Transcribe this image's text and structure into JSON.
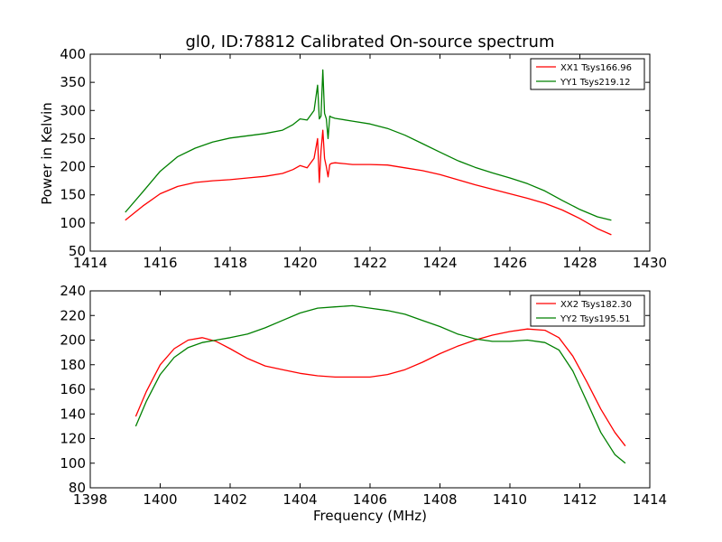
{
  "chart_data": [
    {
      "type": "line",
      "title": "gl0, ID:78812 Calibrated On-source spectrum",
      "xlabel": "",
      "ylabel": "Power in Kelvin",
      "xlim": [
        1414,
        1430
      ],
      "ylim": [
        50,
        400
      ],
      "xticks": [
        "1414",
        "1416",
        "1418",
        "1420",
        "1422",
        "1424",
        "1426",
        "1428",
        "1430"
      ],
      "yticks": [
        "50",
        "100",
        "150",
        "200",
        "250",
        "300",
        "350",
        "400"
      ],
      "grid": false,
      "legend_position": "top-right",
      "series": [
        {
          "name": "XX1 Tsys166.96",
          "color": "#ff0000",
          "x": [
            1415.0,
            1415.5,
            1416.0,
            1416.5,
            1417.0,
            1417.5,
            1418.0,
            1418.5,
            1419.0,
            1419.5,
            1419.8,
            1420.0,
            1420.2,
            1420.4,
            1420.5,
            1420.55,
            1420.6,
            1420.65,
            1420.7,
            1420.75,
            1420.8,
            1420.85,
            1420.9,
            1421.0,
            1421.5,
            1422.0,
            1422.5,
            1423.0,
            1423.5,
            1424.0,
            1424.5,
            1425.0,
            1425.5,
            1426.0,
            1426.5,
            1427.0,
            1427.5,
            1428.0,
            1428.5,
            1428.9
          ],
          "values": [
            105,
            130,
            152,
            165,
            172,
            175,
            177,
            180,
            183,
            188,
            195,
            202,
            198,
            215,
            250,
            172,
            228,
            265,
            215,
            200,
            182,
            204,
            206,
            207,
            204,
            204,
            203,
            198,
            193,
            186,
            177,
            168,
            160,
            152,
            144,
            135,
            123,
            108,
            90,
            79
          ]
        },
        {
          "name": "YY1 Tsys219.12",
          "color": "#008000",
          "x": [
            1415.0,
            1415.5,
            1416.0,
            1416.5,
            1417.0,
            1417.5,
            1418.0,
            1418.5,
            1419.0,
            1419.5,
            1419.8,
            1420.0,
            1420.2,
            1420.4,
            1420.5,
            1420.55,
            1420.6,
            1420.65,
            1420.7,
            1420.75,
            1420.8,
            1420.85,
            1420.9,
            1421.0,
            1421.5,
            1422.0,
            1422.5,
            1423.0,
            1423.5,
            1424.0,
            1424.5,
            1425.0,
            1425.5,
            1426.0,
            1426.5,
            1427.0,
            1427.5,
            1428.0,
            1428.5,
            1428.9
          ],
          "values": [
            119,
            155,
            192,
            218,
            233,
            244,
            251,
            255,
            259,
            265,
            275,
            285,
            283,
            300,
            345,
            285,
            290,
            372,
            295,
            285,
            250,
            290,
            288,
            286,
            281,
            276,
            268,
            256,
            241,
            226,
            211,
            199,
            189,
            180,
            170,
            157,
            140,
            124,
            111,
            105
          ]
        }
      ]
    },
    {
      "type": "line",
      "title": "",
      "xlabel": "Frequency (MHz)",
      "ylabel": "",
      "xlim": [
        1398,
        1414
      ],
      "ylim": [
        80,
        240
      ],
      "xticks": [
        "1398",
        "1400",
        "1402",
        "1404",
        "1406",
        "1408",
        "1410",
        "1412",
        "1414"
      ],
      "yticks": [
        "80",
        "100",
        "120",
        "140",
        "160",
        "180",
        "200",
        "220",
        "240"
      ],
      "grid": false,
      "legend_position": "top-right",
      "series": [
        {
          "name": "XX2 Tsys182.30",
          "color": "#ff0000",
          "x": [
            1399.3,
            1399.6,
            1400.0,
            1400.4,
            1400.8,
            1401.2,
            1401.6,
            1402.0,
            1402.5,
            1403.0,
            1403.5,
            1404.0,
            1404.5,
            1405.0,
            1405.5,
            1406.0,
            1406.5,
            1407.0,
            1407.5,
            1408.0,
            1408.5,
            1409.0,
            1409.5,
            1410.0,
            1410.5,
            1411.0,
            1411.4,
            1411.8,
            1412.2,
            1412.6,
            1413.0,
            1413.3
          ],
          "values": [
            138,
            158,
            180,
            193,
            200,
            202,
            199,
            193,
            185,
            179,
            176,
            173,
            171,
            170,
            170,
            170,
            172,
            176,
            182,
            189,
            195,
            200,
            204,
            207,
            209,
            208,
            202,
            187,
            166,
            144,
            125,
            114
          ]
        },
        {
          "name": "YY2 Tsys195.51",
          "color": "#008000",
          "x": [
            1399.3,
            1399.6,
            1400.0,
            1400.4,
            1400.8,
            1401.2,
            1401.6,
            1402.0,
            1402.5,
            1403.0,
            1403.5,
            1404.0,
            1404.5,
            1405.0,
            1405.5,
            1406.0,
            1406.5,
            1407.0,
            1407.5,
            1408.0,
            1408.5,
            1409.0,
            1409.5,
            1410.0,
            1410.5,
            1411.0,
            1411.4,
            1411.8,
            1412.2,
            1412.6,
            1413.0,
            1413.3
          ],
          "values": [
            130,
            150,
            172,
            186,
            194,
            198,
            200,
            202,
            205,
            210,
            216,
            222,
            226,
            227,
            228,
            226,
            224,
            221,
            216,
            211,
            205,
            201,
            199,
            199,
            200,
            198,
            192,
            175,
            150,
            125,
            107,
            100
          ]
        }
      ]
    }
  ]
}
